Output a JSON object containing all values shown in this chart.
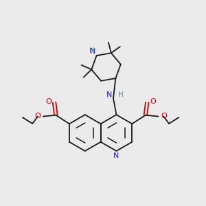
{
  "bg_color": "#ebebeb",
  "bond_color": "#1a1a1a",
  "nitrogen_color": "#1a1aee",
  "oxygen_color": "#cc0000",
  "nh_color": "#4a9090",
  "lw": 1.3,
  "figsize": [
    3.0,
    3.0
  ],
  "dpi": 100,
  "xlim": [
    0,
    10
  ],
  "ylim": [
    0,
    10
  ]
}
